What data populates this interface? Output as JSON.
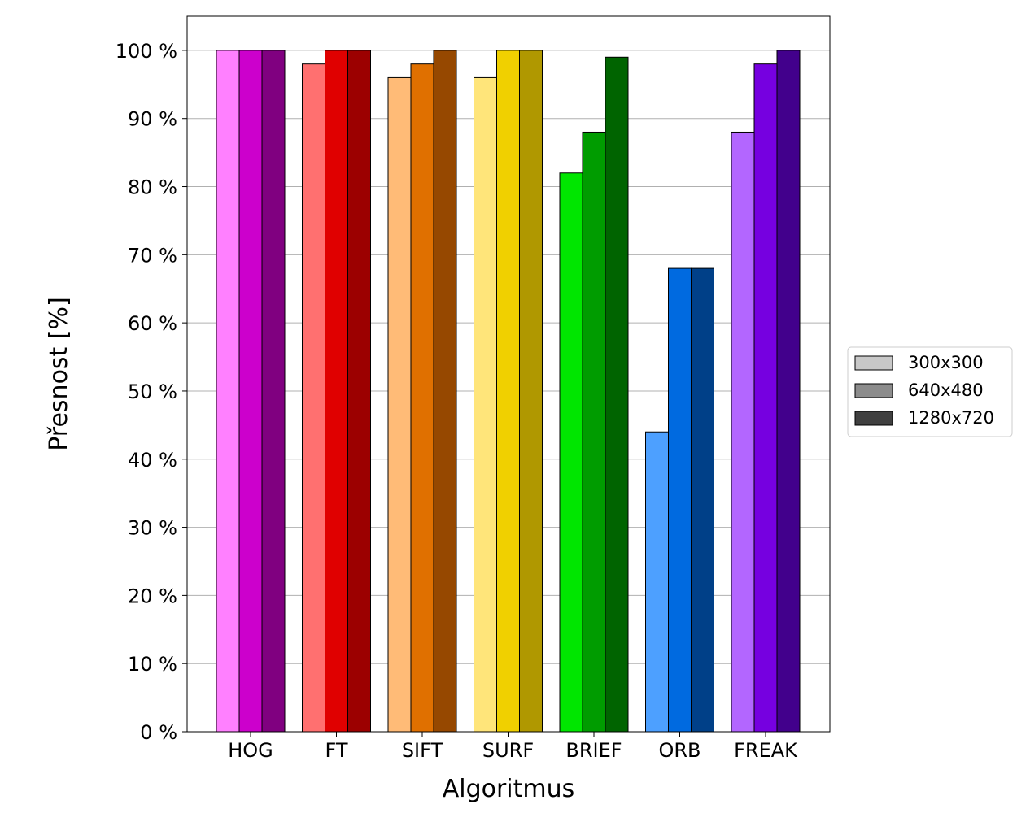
{
  "chart_data": {
    "type": "bar",
    "title": "",
    "xlabel": "Algoritmus",
    "ylabel": "Přesnost [%]",
    "ylim": [
      0,
      105
    ],
    "yticks": [
      0,
      10,
      20,
      30,
      40,
      50,
      60,
      70,
      80,
      90,
      100
    ],
    "ytick_suffix": " %",
    "grid": "horizontal",
    "legend_position": "right",
    "categories": [
      "HOG",
      "FT",
      "SIFT",
      "SURF",
      "BRIEF",
      "ORB",
      "FREAK"
    ],
    "series": [
      {
        "name": "300x300",
        "legend_color": "#c8c8c8",
        "values": [
          100,
          98,
          96,
          96,
          82,
          44,
          88
        ]
      },
      {
        "name": "640x480",
        "legend_color": "#8c8c8c",
        "values": [
          100,
          100,
          98,
          100,
          88,
          68,
          98
        ]
      },
      {
        "name": "1280x720",
        "legend_color": "#404040",
        "values": [
          100,
          100,
          100,
          100,
          99,
          68,
          100
        ]
      }
    ],
    "bar_colors": [
      [
        "#ff80ff",
        "#cc00cc",
        "#800080"
      ],
      [
        "#ff7070",
        "#e00000",
        "#9c0000"
      ],
      [
        "#ffbb77",
        "#e07000",
        "#964800"
      ],
      [
        "#ffe57a",
        "#f0d000",
        "#b09800"
      ],
      [
        "#00e600",
        "#009c00",
        "#006400"
      ],
      [
        "#4da0ff",
        "#006ae0",
        "#004088"
      ],
      [
        "#b366ff",
        "#7600e0",
        "#42008c"
      ]
    ]
  }
}
